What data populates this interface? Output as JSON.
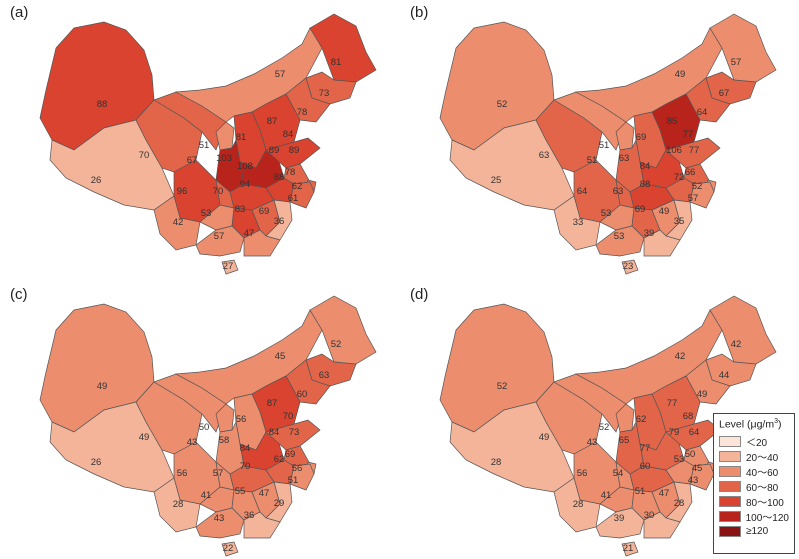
{
  "legend": {
    "title_prefix": "Level (μg/m",
    "title_sup": "3",
    "title_suffix": ")",
    "levels": [
      {
        "label": "＜20",
        "color": "#fbe4d8"
      },
      {
        "label": "20～40",
        "color": "#f4b49a"
      },
      {
        "label": "40～60",
        "color": "#ec8d6e"
      },
      {
        "label": "60～80",
        "color": "#e2654a"
      },
      {
        "label": "80～100",
        "color": "#d9432f"
      },
      {
        "label": "100～120",
        "color": "#b8231c"
      },
      {
        "label": "≥120",
        "color": "#8a1414"
      }
    ]
  },
  "panels": [
    {
      "label": "(a)",
      "values": {
        "xinjiang": "88",
        "tibet": "26",
        "qinghai": "70",
        "gansu": "67",
        "innermongolia": "57",
        "heilongjiang": "81",
        "jilin": "73",
        "liaoning": "78",
        "hebei": "89",
        "beijing": "87",
        "tianjin": "84",
        "shanxi": "81",
        "ningxia": "51",
        "shaanxi": "103",
        "henan": "108",
        "shandong": "89",
        "sichuan": "96",
        "chongqing": "70",
        "hubei": "94",
        "anhui": "88",
        "jiangsu": "78",
        "shanghai": "62",
        "zhejiang": "61",
        "yunnan": "42",
        "guizhou": "53",
        "hunan": "83",
        "jiangxi": "69",
        "fujian": "36",
        "guangxi": "57",
        "guangdong": "47",
        "hainan": "27"
      }
    },
    {
      "label": "(b)",
      "values": {
        "xinjiang": "52",
        "tibet": "25",
        "qinghai": "63",
        "gansu": "51",
        "innermongolia": "49",
        "heilongjiang": "57",
        "jilin": "67",
        "liaoning": "64",
        "hebei": "106",
        "beijing": "85",
        "tianjin": "77",
        "shanxi": "69",
        "ningxia": "51",
        "shaanxi": "63",
        "henan": "84",
        "shandong": "77",
        "sichuan": "64",
        "chongqing": "63",
        "hubei": "88",
        "anhui": "72",
        "jiangsu": "66",
        "shanghai": "52",
        "zhejiang": "57",
        "yunnan": "33",
        "guizhou": "53",
        "hunan": "69",
        "jiangxi": "49",
        "fujian": "35",
        "guangxi": "53",
        "guangdong": "39",
        "hainan": "23"
      }
    },
    {
      "label": "(c)",
      "values": {
        "xinjiang": "49",
        "tibet": "26",
        "qinghai": "49",
        "gansu": "43",
        "innermongolia": "45",
        "heilongjiang": "52",
        "jilin": "63",
        "liaoning": "60",
        "hebei": "84",
        "beijing": "87",
        "tianjin": "70",
        "shanxi": "56",
        "ningxia": "50",
        "shaanxi": "58",
        "henan": "84",
        "shandong": "73",
        "sichuan": "56",
        "chongqing": "57",
        "hubei": "70",
        "anhui": "62",
        "jiangsu": "69",
        "shanghai": "56",
        "zhejiang": "51",
        "yunnan": "28",
        "guizhou": "41",
        "hunan": "55",
        "jiangxi": "47",
        "fujian": "29",
        "guangxi": "43",
        "guangdong": "36",
        "hainan": "22"
      }
    },
    {
      "label": "(d)",
      "values": {
        "xinjiang": "52",
        "tibet": "28",
        "qinghai": "49",
        "gansu": "43",
        "innermongolia": "42",
        "heilongjiang": "42",
        "jilin": "44",
        "liaoning": "49",
        "hebei": "79",
        "beijing": "77",
        "tianjin": "68",
        "shanxi": "62",
        "ningxia": "52",
        "shaanxi": "65",
        "henan": "77",
        "shandong": "64",
        "sichuan": "56",
        "chongqing": "54",
        "hubei": "60",
        "anhui": "53",
        "jiangsu": "50",
        "shanghai": "45",
        "zhejiang": "43",
        "yunnan": "28",
        "guizhou": "41",
        "hunan": "51",
        "jiangxi": "47",
        "fujian": "28",
        "guangxi": "39",
        "guangdong": "30",
        "hainan": "21"
      }
    }
  ]
}
